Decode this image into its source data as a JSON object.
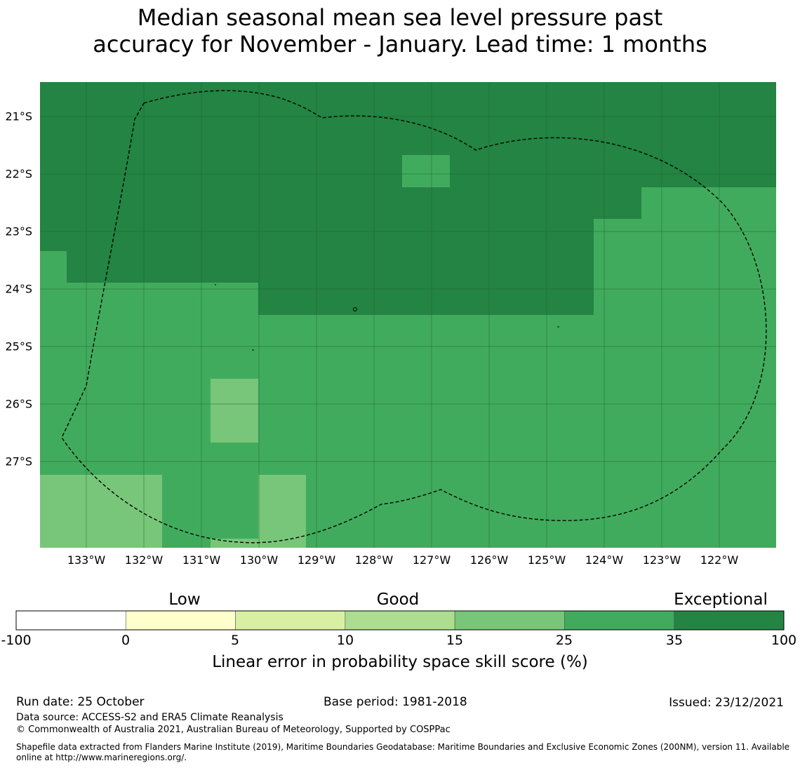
{
  "title": {
    "line1": "Median seasonal mean sea level pressure past",
    "line2": "accuracy for November - January. Lead time: 1 months"
  },
  "map": {
    "lat_labels": [
      "21°S",
      "22°S",
      "23°S",
      "24°S",
      "25°S",
      "26°S",
      "27°S"
    ],
    "lon_labels": [
      "133°W",
      "132°W",
      "131°W",
      "130°W",
      "129°W",
      "128°W",
      "127°W",
      "126°W",
      "125°W",
      "124°W",
      "123°W",
      "122°W"
    ],
    "category_colors": {
      "15-25": "#78c679",
      "25-35": "#41ab5d",
      "35-100": "#238443"
    },
    "eez_outline": "dashed black"
  },
  "colorbar": {
    "categories": [
      "Low",
      "Good",
      "Exceptional"
    ],
    "ticks": [
      "-100",
      "0",
      "5",
      "10",
      "15",
      "25",
      "35",
      "100"
    ],
    "colors": [
      "#ffffff",
      "#ffffcc",
      "#d9f0a3",
      "#addd8e",
      "#78c679",
      "#41ab5d",
      "#238443"
    ],
    "label": "Linear error in probability space skill score (%)"
  },
  "footer": {
    "run_date": "Run date: 25 October",
    "base_period": "Base period: 1981-2018",
    "issued": "Issued: 23/12/2021",
    "data_source": "Data source: ACCESS-S2 and ERA5 Climate Reanalysis",
    "copyright": "© Commonwealth of Australia 2021, Australian Bureau of Meteorology, Supported by COSPPac",
    "shapefile": "Shapefile data extracted from Flanders Marine Institute (2019), Maritime Boundaries Geodatabase: Maritime Boundaries and Exclusive Economic Zones (200NM), version 11. Available online at http://www.marineregions.org/."
  }
}
